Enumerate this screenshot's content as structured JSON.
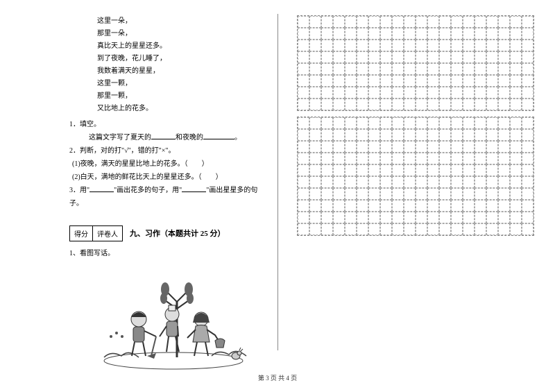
{
  "poem": {
    "lines": [
      "这里一朵，",
      "那里一朵，",
      "真比天上的星星还多。",
      "到了夜晚，花儿睡了，",
      "我数着满天的星星，",
      "这里一颗，",
      "那里一颗，",
      "又比地上的花多。"
    ]
  },
  "questions": {
    "q1_label": "1．填空。",
    "q1_text_prefix": "这篇文字写了夏天的",
    "q1_text_mid": "和夜晚的",
    "q1_text_suffix": "。",
    "q2_label": "2．判断，对的打\"√\"，错的打\"×\"。",
    "q2_sub1": "(1)夜晚，满天的星星比地上的花多。（　　）",
    "q2_sub2": "(2)白天，满地的鲜花比天上的星星还多。（　　）",
    "q3_label": "3．用\"",
    "q3_mid1": "\"画出花多的句子，用\"",
    "q3_mid2": "\"画出星星多的句子。"
  },
  "score_table": {
    "col1": "得分",
    "col2": "评卷人"
  },
  "section": {
    "title": "九、习作（本题共计 25 分）"
  },
  "writing_prompt": {
    "label": "1、看图写话。"
  },
  "footer": {
    "text": "第 3 页 共 4 页"
  },
  "grid": {
    "columns": 20,
    "rows_block1": 8,
    "rows_block2": 10,
    "cell_border_color": "#aaaaaa",
    "dash_style": "dashed"
  },
  "colors": {
    "background": "#ffffff",
    "text": "#000000",
    "divider": "#888888"
  }
}
